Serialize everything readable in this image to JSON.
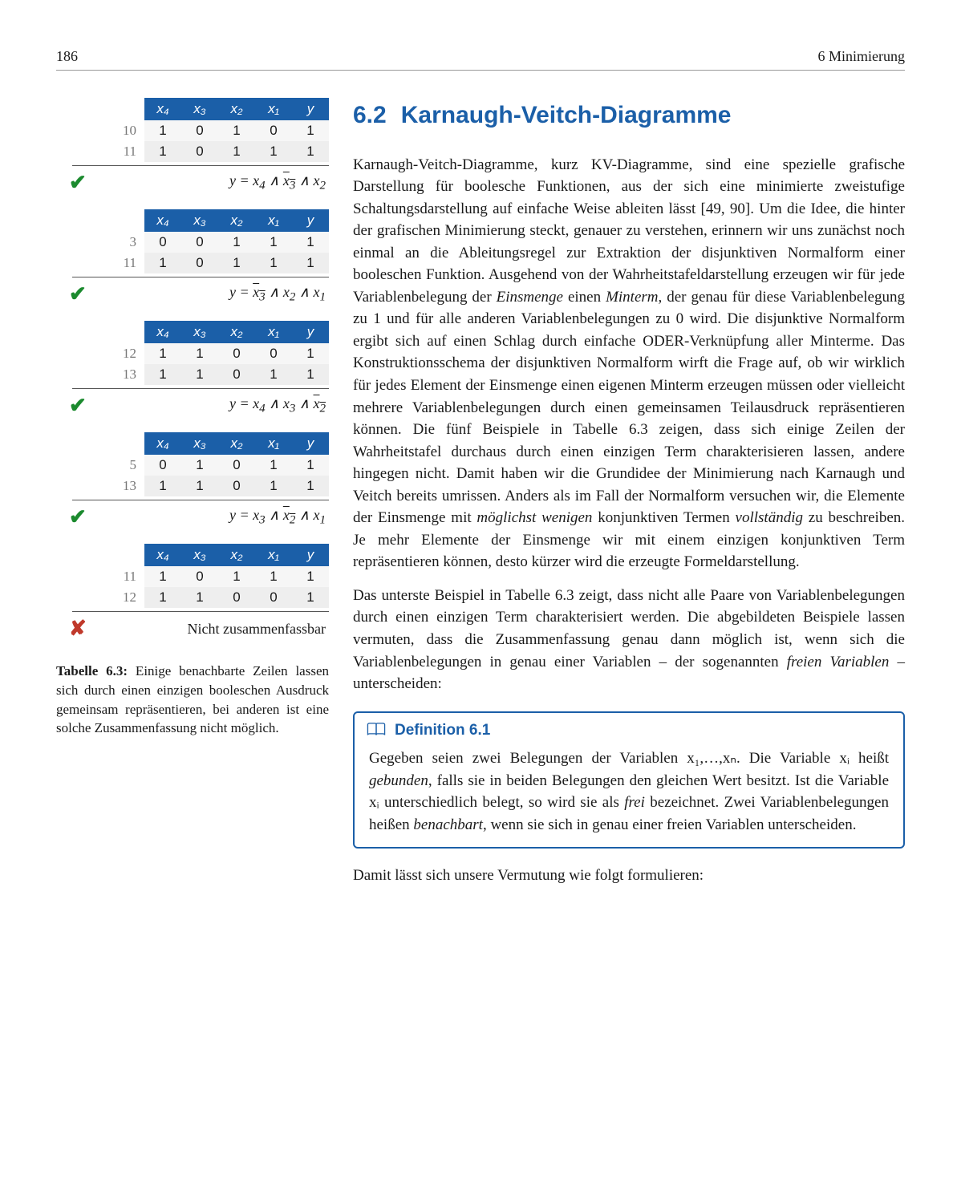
{
  "page_number": "186",
  "chapter_running": "6  Minimierung",
  "section": {
    "number": "6.2",
    "title": "Karnaugh-Veitch-Diagramme"
  },
  "body": {
    "p1": "Karnaugh-Veitch-Diagramme, kurz KV-Diagramme, sind eine spezielle grafische Darstellung für boolesche Funktionen, aus der sich eine minimierte zweistufige Schaltungsdarstellung auf einfache Weise ableiten lässt [49, 90]. Um die Idee, die hinter der grafischen Minimierung steckt, genauer zu verstehen, erinnern wir uns zunächst noch einmal an die Ableitungsregel zur Extraktion der disjunktiven Normalform einer booleschen Funktion. Ausgehend von der Wahrheitstafeldarstellung erzeugen wir für jede Variablenbelegung der ",
    "p1_em1": "Einsmenge",
    "p1_mid": " einen ",
    "p1_em2": "Minterm",
    "p1_b": ", der genau für diese Variablenbelegung zu 1 und für alle anderen Variablenbelegungen zu 0 wird. Die disjunktive Normalform ergibt sich auf einen Schlag durch einfache ODER-Verknüpfung aller Minterme. Das Konstruktionsschema der disjunktiven Normalform wirft die Frage auf, ob wir wirklich für jedes Element der Einsmenge einen eigenen Minterm erzeugen müssen oder vielleicht mehrere Variablenbelegungen durch einen gemeinsamen Teilausdruck repräsentieren können. Die fünf Beispiele in Tabelle 6.3 zeigen, dass sich einige Zeilen der Wahrheitstafel durchaus durch einen einzigen Term charakterisieren lassen, andere hingegen nicht. Damit haben wir die Grundidee der Minimierung nach Karnaugh und Veitch bereits umrissen. Anders als im Fall der Normalform versuchen wir, die Elemente der Einsmenge mit ",
    "p1_em3": "möglichst wenigen",
    "p1_c": " konjunktiven Termen ",
    "p1_em4": "vollständig",
    "p1_d": " zu beschreiben. Je mehr Elemente der Einsmenge wir mit einem einzigen konjunktiven Term repräsentieren können, desto kürzer wird die erzeugte Formeldarstellung.",
    "p2a": "Das unterste Beispiel in Tabelle 6.3 zeigt, dass nicht alle Paare von Variablenbelegungen durch einen einzigen Term charakterisiert werden. Die abgebildeten Beispiele lassen vermuten, dass die Zusammenfassung genau dann möglich ist, wenn sich die Variablenbelegungen in genau einer Variablen – der sogenannten ",
    "p2_em": "freien Variablen",
    "p2b": " – unterscheiden:",
    "p3": "Damit lässt sich unsere Vermutung wie folgt formulieren:"
  },
  "definition": {
    "label": "Definition 6.1",
    "text_a": "Gegeben seien zwei Belegungen der Variablen x₁,…,xₙ. Die Variable xᵢ heißt ",
    "em1": "gebunden",
    "text_b": ", falls sie in beiden Belegungen den gleichen Wert besitzt. Ist die Variable xᵢ unterschiedlich belegt, so wird sie als ",
    "em2": "frei",
    "text_c": " bezeichnet. Zwei Variablenbelegungen heißen ",
    "em3": "benachbart",
    "text_d": ", wenn sie sich in genau einer freien Variablen unterscheiden."
  },
  "table_caption": {
    "label": "Tabelle 6.3:",
    "text": " Einige benachbarte Zeilen lassen sich durch einen einzigen booleschen Ausdruck gemeinsam repräsentieren, bei anderen ist eine solche Zusammenfassung nicht möglich."
  },
  "headers": {
    "x4": "x₄",
    "x3": "x₃",
    "x2": "x₂",
    "x1": "x₁",
    "y": "y"
  },
  "groups": [
    {
      "rows": [
        {
          "idx": "10",
          "v": [
            "1",
            "0",
            "1",
            "0",
            "1"
          ]
        },
        {
          "idx": "11",
          "v": [
            "1",
            "0",
            "1",
            "1",
            "1"
          ]
        }
      ],
      "ok": true,
      "formula_html": "y = x<sub>4</sub> ∧ <span class=\"overline\">x<sub>3</sub></span> ∧ x<sub>2</sub>"
    },
    {
      "rows": [
        {
          "idx": "3",
          "v": [
            "0",
            "0",
            "1",
            "1",
            "1"
          ]
        },
        {
          "idx": "11",
          "v": [
            "1",
            "0",
            "1",
            "1",
            "1"
          ]
        }
      ],
      "ok": true,
      "formula_html": "y = <span class=\"overline\">x<sub>3</sub></span> ∧ x<sub>2</sub> ∧ x<sub>1</sub>"
    },
    {
      "rows": [
        {
          "idx": "12",
          "v": [
            "1",
            "1",
            "0",
            "0",
            "1"
          ]
        },
        {
          "idx": "13",
          "v": [
            "1",
            "1",
            "0",
            "1",
            "1"
          ]
        }
      ],
      "ok": true,
      "formula_html": "y = x<sub>4</sub> ∧ x<sub>3</sub> ∧ <span class=\"overline\">x<sub>2</sub></span>"
    },
    {
      "rows": [
        {
          "idx": "5",
          "v": [
            "0",
            "1",
            "0",
            "1",
            "1"
          ]
        },
        {
          "idx": "13",
          "v": [
            "1",
            "1",
            "0",
            "1",
            "1"
          ]
        }
      ],
      "ok": true,
      "formula_html": "y = x<sub>3</sub> ∧ <span class=\"overline\">x<sub>2</sub></span> ∧ x<sub>1</sub>"
    },
    {
      "rows": [
        {
          "idx": "11",
          "v": [
            "1",
            "0",
            "1",
            "1",
            "1"
          ]
        },
        {
          "idx": "12",
          "v": [
            "1",
            "1",
            "0",
            "0",
            "1"
          ]
        }
      ],
      "ok": false,
      "formula_html": "Nicht zusammenfassbar"
    }
  ],
  "colors": {
    "blue": "#1b5fa8",
    "green": "#1b8a2e",
    "red": "#c0392b",
    "header_bg": "#1b5fa8",
    "row_bg_a": "#f6f6f6",
    "row_bg_b": "#eeeeee"
  }
}
